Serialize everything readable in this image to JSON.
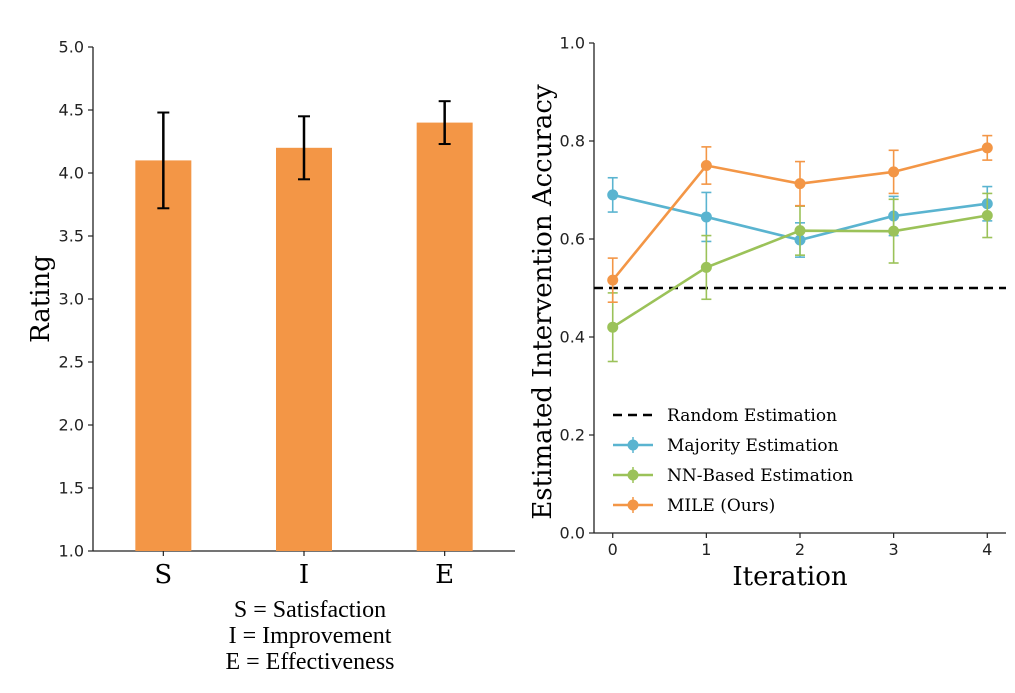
{
  "chart_data": [
    {
      "type": "bar",
      "ylabel": "Rating",
      "xlabel": "",
      "categories": [
        "S",
        "I",
        "E"
      ],
      "values": [
        4.1,
        4.2,
        4.4
      ],
      "errors": [
        [
          3.72,
          4.48
        ],
        [
          3.95,
          4.45
        ],
        [
          4.23,
          4.57
        ]
      ],
      "ylim": [
        1.0,
        5.0
      ],
      "yticks": [
        "1.0",
        "1.5",
        "2.0",
        "2.5",
        "3.0",
        "3.5",
        "4.0",
        "4.5",
        "5.0"
      ],
      "bar_color": "#F39646",
      "error_color": "#000000",
      "grid": false
    },
    {
      "type": "line",
      "xlabel": "Iteration",
      "ylabel": "Estimated Intervention Accuracy",
      "x": [
        0,
        1,
        2,
        3,
        4
      ],
      "xticks": [
        "0",
        "1",
        "2",
        "3",
        "4"
      ],
      "ylim": [
        0.0,
        1.0
      ],
      "yticks": [
        "0.0",
        "0.2",
        "0.4",
        "0.6",
        "0.8",
        "1.0"
      ],
      "grid": false,
      "legend_position": "lower-left",
      "series": [
        {
          "name": "Random Estimation",
          "style": "dashed",
          "color": "#000000",
          "values": [
            0.5,
            0.5,
            0.5,
            0.5,
            0.5
          ]
        },
        {
          "name": "Majority Estimation",
          "color": "#5AB4D0",
          "values": [
            0.69,
            0.645,
            0.598,
            0.647,
            0.672
          ],
          "errors": [
            0.035,
            0.05,
            0.035,
            0.04,
            0.035
          ]
        },
        {
          "name": "NN-Based Estimation",
          "color": "#9BC259",
          "values": [
            0.42,
            0.542,
            0.617,
            0.616,
            0.648
          ],
          "errors": [
            0.07,
            0.065,
            0.05,
            0.065,
            0.045
          ]
        },
        {
          "name": "MILE (Ours)",
          "color": "#F39646",
          "values": [
            0.516,
            0.75,
            0.713,
            0.737,
            0.786
          ],
          "errors": [
            0.045,
            0.038,
            0.045,
            0.044,
            0.025
          ]
        }
      ]
    }
  ],
  "caption": {
    "line1": "S = Satisfaction",
    "line2": "I = Improvement",
    "line3": "E = Effectiveness"
  }
}
